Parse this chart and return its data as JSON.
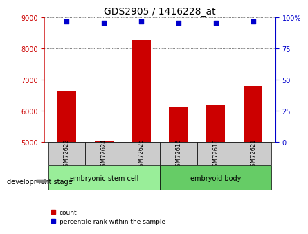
{
  "title": "GDS2905 / 1416228_at",
  "samples": [
    "GSM72622",
    "GSM72624",
    "GSM72626",
    "GSM72616",
    "GSM72618",
    "GSM72621"
  ],
  "counts": [
    6650,
    5050,
    8280,
    6120,
    6200,
    6800
  ],
  "percentiles": [
    97,
    96,
    97,
    96,
    96,
    97
  ],
  "ylim_left": [
    5000,
    9000
  ],
  "ylim_right": [
    0,
    100
  ],
  "yticks_left": [
    5000,
    6000,
    7000,
    8000,
    9000
  ],
  "yticks_right": [
    0,
    25,
    50,
    75,
    100
  ],
  "bar_color": "#cc0000",
  "dot_color": "#0000cc",
  "bar_width": 0.5,
  "groups": [
    {
      "label": "embryonic stem cell",
      "indices": [
        0,
        1,
        2
      ],
      "color": "#99ee99"
    },
    {
      "label": "embryoid body",
      "indices": [
        3,
        4,
        5
      ],
      "color": "#66cc66"
    }
  ],
  "group_label": "development stage",
  "legend_count_label": "count",
  "legend_percentile_label": "percentile rank within the sample",
  "left_tick_color": "#cc0000",
  "right_tick_color": "#0000cc",
  "grid_linestyle": "dotted",
  "sample_box_color": "#cccccc",
  "background_color": "#ffffff"
}
